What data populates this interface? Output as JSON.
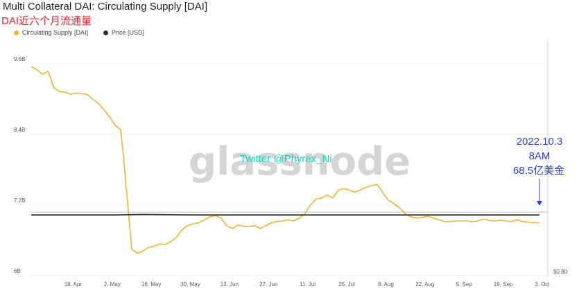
{
  "header": {
    "title": "Multi Collateral DAI: Circulating Supply [DAI]",
    "subtitle": "DAI近六个月流通量"
  },
  "legend": [
    {
      "label": "Circulating Supply [DAI]",
      "color": "#f2b233"
    },
    {
      "label": "Price [USD]",
      "color": "#333333"
    }
  ],
  "watermark": "glassnode",
  "twitter_handle": "Twitter @Phyrex_Ni",
  "annotation": {
    "line1": "2022.10.3",
    "line2": "8AM",
    "line3": "68.5亿美金",
    "color": "#2b3fd6"
  },
  "chart_data": {
    "type": "line",
    "y_ticks": [
      "9.6B",
      "8.4B",
      "7.2B",
      "6B"
    ],
    "y_tick_values": [
      9.6,
      8.4,
      7.2,
      6.0
    ],
    "ylim": [
      6.0,
      10.0
    ],
    "right_tick": "$0.80",
    "x_ticks": [
      "18. Apr",
      "2. May",
      "16. May",
      "30. May",
      "13. Jun",
      "27. Jun",
      "11. Jul",
      "25. Jul",
      "8. Aug",
      "22. Aug",
      "5. Sep",
      "19. Sep",
      "3. Oct"
    ],
    "x_tick_days": [
      15,
      29,
      43,
      57,
      71,
      85,
      99,
      113,
      127,
      141,
      155,
      169,
      183
    ],
    "series": [
      {
        "name": "Circulating Supply [DAI]",
        "color": "#f2b233",
        "points": [
          [
            0,
            9.55
          ],
          [
            2,
            9.5
          ],
          [
            4,
            9.42
          ],
          [
            5,
            9.45
          ],
          [
            6,
            9.47
          ],
          [
            7,
            9.35
          ],
          [
            8,
            9.2
          ],
          [
            10,
            9.13
          ],
          [
            12,
            9.12
          ],
          [
            14,
            9.08
          ],
          [
            16,
            9.1
          ],
          [
            18,
            9.09
          ],
          [
            20,
            9.08
          ],
          [
            22,
            9.0
          ],
          [
            24,
            8.93
          ],
          [
            26,
            8.82
          ],
          [
            28,
            8.7
          ],
          [
            30,
            8.56
          ],
          [
            32,
            8.48
          ],
          [
            33,
            8.05
          ],
          [
            34,
            7.5
          ],
          [
            35,
            7.0
          ],
          [
            36,
            6.45
          ],
          [
            38,
            6.38
          ],
          [
            40,
            6.42
          ],
          [
            42,
            6.48
          ],
          [
            44,
            6.5
          ],
          [
            46,
            6.54
          ],
          [
            48,
            6.53
          ],
          [
            50,
            6.58
          ],
          [
            52,
            6.65
          ],
          [
            54,
            6.78
          ],
          [
            56,
            6.85
          ],
          [
            58,
            6.88
          ],
          [
            60,
            6.9
          ],
          [
            62,
            6.95
          ],
          [
            64,
            7.0
          ],
          [
            66,
            7.02
          ],
          [
            68,
            6.98
          ],
          [
            70,
            6.85
          ],
          [
            72,
            6.8
          ],
          [
            74,
            6.86
          ],
          [
            76,
            6.84
          ],
          [
            78,
            6.83
          ],
          [
            80,
            6.85
          ],
          [
            82,
            6.8
          ],
          [
            84,
            6.85
          ],
          [
            86,
            6.9
          ],
          [
            88,
            6.92
          ],
          [
            90,
            6.93
          ],
          [
            92,
            6.95
          ],
          [
            94,
            6.93
          ],
          [
            96,
            6.98
          ],
          [
            98,
            7.05
          ],
          [
            100,
            7.2
          ],
          [
            102,
            7.3
          ],
          [
            104,
            7.32
          ],
          [
            106,
            7.37
          ],
          [
            108,
            7.32
          ],
          [
            110,
            7.45
          ],
          [
            112,
            7.48
          ],
          [
            114,
            7.45
          ],
          [
            116,
            7.42
          ],
          [
            118,
            7.46
          ],
          [
            120,
            7.5
          ],
          [
            122,
            7.53
          ],
          [
            124,
            7.55
          ],
          [
            126,
            7.4
          ],
          [
            128,
            7.28
          ],
          [
            130,
            7.22
          ],
          [
            132,
            7.15
          ],
          [
            134,
            7.05
          ],
          [
            136,
            7.0
          ],
          [
            138,
            6.98
          ],
          [
            140,
            6.99
          ],
          [
            142,
            7.01
          ],
          [
            144,
            6.98
          ],
          [
            146,
            6.95
          ],
          [
            148,
            6.92
          ],
          [
            150,
            6.92
          ],
          [
            152,
            6.93
          ],
          [
            154,
            6.93
          ],
          [
            156,
            6.93
          ],
          [
            158,
            6.92
          ],
          [
            160,
            6.93
          ],
          [
            162,
            6.96
          ],
          [
            164,
            6.94
          ],
          [
            166,
            6.93
          ],
          [
            168,
            6.94
          ],
          [
            170,
            6.93
          ],
          [
            172,
            6.92
          ],
          [
            174,
            6.95
          ],
          [
            176,
            6.92
          ],
          [
            178,
            6.91
          ],
          [
            180,
            6.9
          ],
          [
            182,
            6.9
          ]
        ]
      },
      {
        "name": "Price [USD]",
        "color": "#333333",
        "points": [
          [
            0,
            7.03
          ],
          [
            30,
            7.03
          ],
          [
            40,
            7.04
          ],
          [
            60,
            7.03
          ],
          [
            90,
            7.03
          ],
          [
            120,
            7.03
          ],
          [
            150,
            7.03
          ],
          [
            182,
            7.03
          ]
        ]
      }
    ],
    "reference_line": 7.08
  }
}
